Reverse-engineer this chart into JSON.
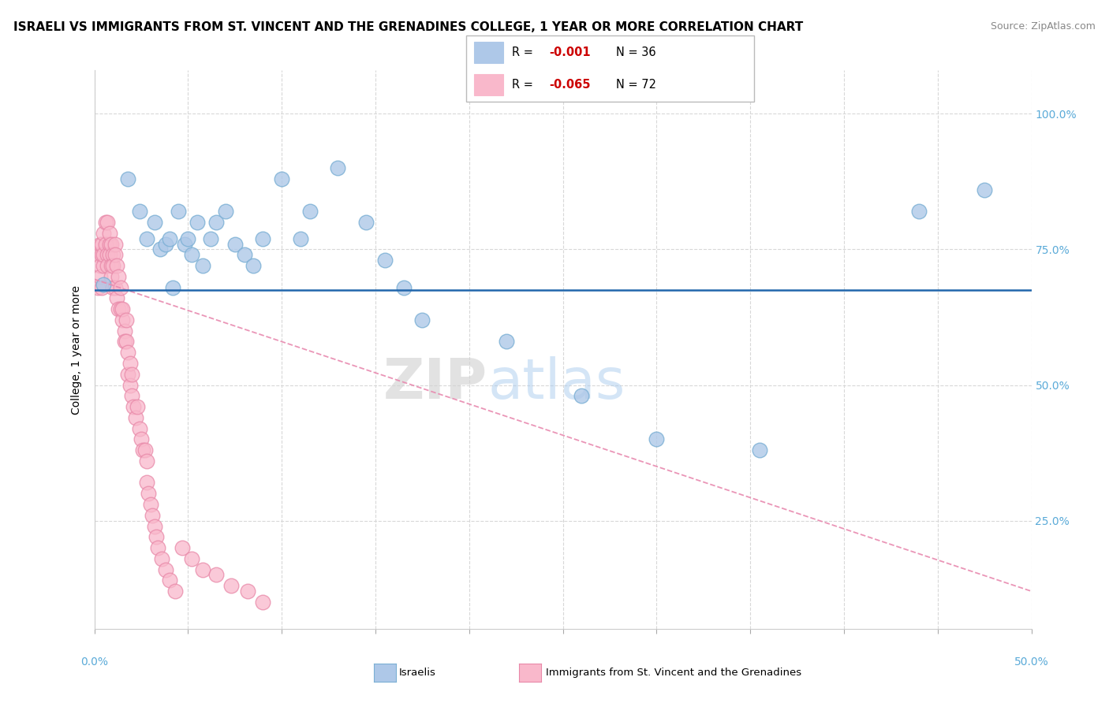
{
  "title": "ISRAELI VS IMMIGRANTS FROM ST. VINCENT AND THE GRENADINES COLLEGE, 1 YEAR OR MORE CORRELATION CHART",
  "source": "Source: ZipAtlas.com",
  "ylabel": "College, 1 year or more",
  "xlim": [
    0.0,
    0.5
  ],
  "ylim": [
    0.05,
    1.08
  ],
  "ytick_values": [
    0.25,
    0.5,
    0.75,
    1.0
  ],
  "xtick_values": [
    0.0,
    0.05,
    0.1,
    0.15,
    0.2,
    0.25,
    0.3,
    0.35,
    0.4,
    0.45,
    0.5
  ],
  "legend_r_israeli": "-0.001",
  "legend_n_israeli": "36",
  "legend_r_immigrants": "-0.065",
  "legend_n_immigrants": "72",
  "israeli_color": "#aec8e8",
  "israeli_edge_color": "#7aafd4",
  "immigrants_color": "#f9b8cb",
  "immigrants_edge_color": "#e888a8",
  "trend_line_israeli_color": "#2166ac",
  "trend_line_immigrants_color": "#e88aaf",
  "horizontal_line_y": 0.675,
  "trend_slope": -1.15,
  "trend_intercept": 0.695,
  "background_color": "#ffffff",
  "grid_color": "#d8d8d8",
  "israeli_scatter_x": [
    0.005,
    0.018,
    0.024,
    0.028,
    0.032,
    0.035,
    0.038,
    0.04,
    0.042,
    0.045,
    0.048,
    0.05,
    0.052,
    0.055,
    0.058,
    0.062,
    0.065,
    0.07,
    0.075,
    0.08,
    0.085,
    0.09,
    0.1,
    0.11,
    0.115,
    0.13,
    0.145,
    0.155,
    0.165,
    0.175,
    0.22,
    0.26,
    0.3,
    0.355,
    0.44,
    0.475
  ],
  "israeli_scatter_y": [
    0.685,
    0.88,
    0.82,
    0.77,
    0.8,
    0.75,
    0.76,
    0.77,
    0.68,
    0.82,
    0.76,
    0.77,
    0.74,
    0.8,
    0.72,
    0.77,
    0.8,
    0.82,
    0.76,
    0.74,
    0.72,
    0.77,
    0.88,
    0.77,
    0.82,
    0.9,
    0.8,
    0.73,
    0.68,
    0.62,
    0.58,
    0.48,
    0.4,
    0.38,
    0.82,
    0.86
  ],
  "immigrants_scatter_x": [
    0.002,
    0.002,
    0.003,
    0.003,
    0.003,
    0.004,
    0.004,
    0.004,
    0.005,
    0.005,
    0.005,
    0.006,
    0.006,
    0.007,
    0.007,
    0.007,
    0.008,
    0.008,
    0.008,
    0.009,
    0.009,
    0.009,
    0.01,
    0.01,
    0.01,
    0.011,
    0.011,
    0.011,
    0.012,
    0.012,
    0.013,
    0.013,
    0.014,
    0.014,
    0.015,
    0.015,
    0.016,
    0.016,
    0.017,
    0.017,
    0.018,
    0.018,
    0.019,
    0.019,
    0.02,
    0.02,
    0.021,
    0.022,
    0.023,
    0.024,
    0.025,
    0.026,
    0.027,
    0.028,
    0.028,
    0.029,
    0.03,
    0.031,
    0.032,
    0.033,
    0.034,
    0.036,
    0.038,
    0.04,
    0.043,
    0.047,
    0.052,
    0.058,
    0.065,
    0.073,
    0.082,
    0.09
  ],
  "immigrants_scatter_y": [
    0.74,
    0.68,
    0.72,
    0.76,
    0.7,
    0.74,
    0.68,
    0.76,
    0.72,
    0.74,
    0.78,
    0.8,
    0.76,
    0.74,
    0.8,
    0.72,
    0.76,
    0.74,
    0.78,
    0.72,
    0.76,
    0.7,
    0.74,
    0.68,
    0.72,
    0.76,
    0.74,
    0.68,
    0.72,
    0.66,
    0.64,
    0.7,
    0.68,
    0.64,
    0.62,
    0.64,
    0.6,
    0.58,
    0.62,
    0.58,
    0.56,
    0.52,
    0.5,
    0.54,
    0.52,
    0.48,
    0.46,
    0.44,
    0.46,
    0.42,
    0.4,
    0.38,
    0.38,
    0.36,
    0.32,
    0.3,
    0.28,
    0.26,
    0.24,
    0.22,
    0.2,
    0.18,
    0.16,
    0.14,
    0.12,
    0.2,
    0.18,
    0.16,
    0.15,
    0.13,
    0.12,
    0.1
  ]
}
